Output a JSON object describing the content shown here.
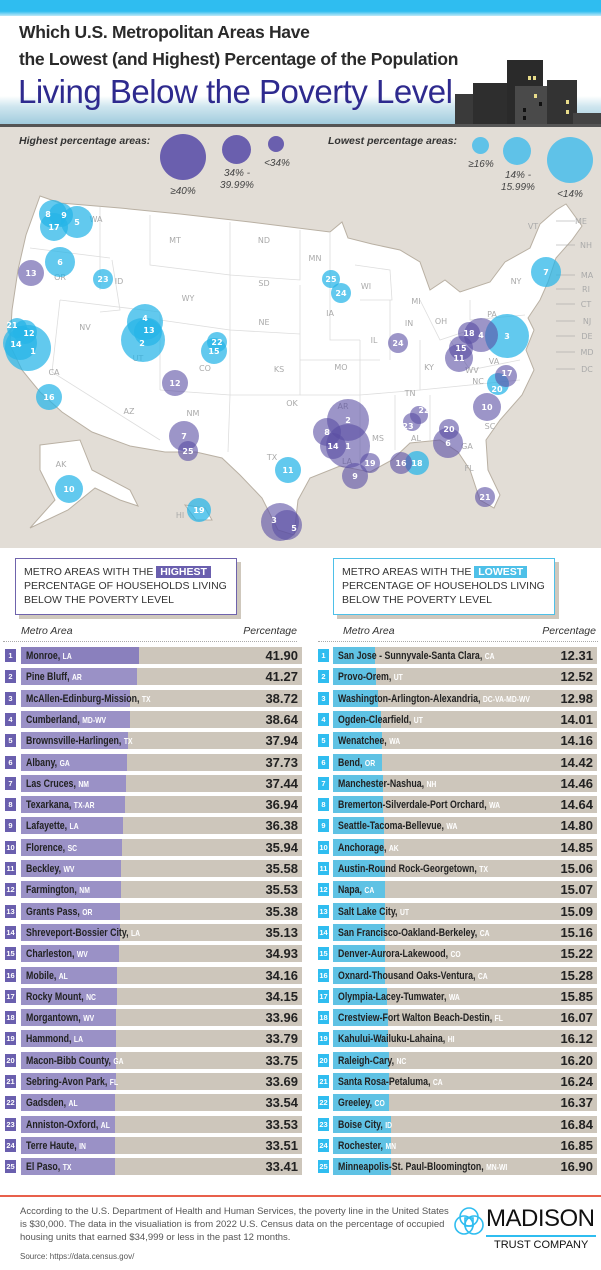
{
  "header": {
    "title_line1": "Which U.S. Metropolitan Areas Have",
    "title_line2": "the Lowest (and Highest) Percentage of the Population",
    "title_line3": "Living Below the Poverty Level"
  },
  "legend": {
    "highest_label": "Highest percentage areas:",
    "highest_sizes": [
      "≥40%",
      "34% -\n39.99%",
      "<34%"
    ],
    "lowest_label": "Lowest percentage areas:",
    "lowest_sizes": [
      "≥16%",
      "14% -\n15.99%",
      "<14%"
    ],
    "highest_color": "#6a5fae",
    "lowest_color": "#4ec0e8"
  },
  "map": {
    "state_labels": [
      "ME",
      "NH",
      "MA",
      "RI",
      "CT",
      "NJ",
      "DE",
      "MD",
      "DC",
      "VT",
      "NY",
      "PA",
      "MT",
      "ND",
      "MN",
      "WI",
      "MI",
      "SD",
      "WY",
      "ID",
      "OR",
      "WA",
      "NV",
      "CA",
      "UT",
      "CO",
      "NE",
      "IA",
      "IL",
      "IN",
      "OH",
      "KS",
      "MO",
      "KY",
      "WV",
      "VA",
      "NC",
      "TN",
      "SC",
      "OK",
      "AR",
      "AZ",
      "NM",
      "TX",
      "LA",
      "MS",
      "AL",
      "GA",
      "FL",
      "AK",
      "HI"
    ],
    "markers": [
      {
        "rank": "8",
        "group": "lowest"
      },
      {
        "rank": "9",
        "group": "lowest"
      },
      {
        "rank": "17",
        "group": "lowest"
      },
      {
        "rank": "5",
        "group": "lowest"
      },
      {
        "rank": "6",
        "group": "lowest"
      },
      {
        "rank": "23",
        "group": "lowest"
      },
      {
        "rank": "21",
        "group": "lowest"
      },
      {
        "rank": "12",
        "group": "lowest"
      },
      {
        "rank": "14",
        "group": "lowest"
      },
      {
        "rank": "1",
        "group": "lowest"
      },
      {
        "rank": "4",
        "group": "lowest"
      },
      {
        "rank": "13",
        "group": "lowest"
      },
      {
        "rank": "2",
        "group": "lowest"
      },
      {
        "rank": "22",
        "group": "lowest"
      },
      {
        "rank": "15",
        "group": "lowest"
      },
      {
        "rank": "16",
        "group": "lowest"
      },
      {
        "rank": "10",
        "group": "lowest"
      },
      {
        "rank": "19",
        "group": "lowest"
      },
      {
        "rank": "11",
        "group": "lowest"
      },
      {
        "rank": "25",
        "group": "lowest"
      },
      {
        "rank": "24",
        "group": "lowest"
      },
      {
        "rank": "7",
        "group": "lowest"
      },
      {
        "rank": "3",
        "group": "lowest"
      },
      {
        "rank": "20",
        "group": "lowest"
      },
      {
        "rank": "18",
        "group": "lowest"
      },
      {
        "rank": "13",
        "group": "highest"
      },
      {
        "rank": "12",
        "group": "highest"
      },
      {
        "rank": "7",
        "group": "highest"
      },
      {
        "rank": "25",
        "group": "highest"
      },
      {
        "rank": "3",
        "group": "highest"
      },
      {
        "rank": "5",
        "group": "highest"
      },
      {
        "rank": "2",
        "group": "highest"
      },
      {
        "rank": "8",
        "group": "highest"
      },
      {
        "rank": "14",
        "group": "highest"
      },
      {
        "rank": "1",
        "group": "highest"
      },
      {
        "rank": "9",
        "group": "highest"
      },
      {
        "rank": "19",
        "group": "highest"
      },
      {
        "rank": "16",
        "group": "highest"
      },
      {
        "rank": "22",
        "group": "highest"
      },
      {
        "rank": "23",
        "group": "highest"
      },
      {
        "rank": "20",
        "group": "highest"
      },
      {
        "rank": "6",
        "group": "highest"
      },
      {
        "rank": "10",
        "group": "highest"
      },
      {
        "rank": "21",
        "group": "highest"
      },
      {
        "rank": "17",
        "group": "highest"
      },
      {
        "rank": "24",
        "group": "highest"
      },
      {
        "rank": "18",
        "group": "highest"
      },
      {
        "rank": "4",
        "group": "highest"
      },
      {
        "rank": "15",
        "group": "highest"
      },
      {
        "rank": "11",
        "group": "highest"
      }
    ]
  },
  "chart_data": [
    {
      "type": "bar",
      "orientation": "horizontal",
      "title_pre": "METRO AREAS WITH THE",
      "title_highlight": "HIGHEST",
      "title_post": "PERCENTAGE OF HOUSEHOLDS LIVING BELOW THE POVERTY LEVEL",
      "col_name": "Metro Area",
      "col_value": "Percentage",
      "color": "#9a91c6",
      "rows": [
        {
          "rank": "1",
          "name": "Monroe,",
          "state": "LA",
          "value": "41.90"
        },
        {
          "rank": "2",
          "name": "Pine Bluff,",
          "state": "AR",
          "value": "41.27"
        },
        {
          "rank": "3",
          "name": "McAllen-Edinburg-Mission,",
          "state": "TX",
          "value": "38.72"
        },
        {
          "rank": "4",
          "name": "Cumberland,",
          "state": "MD-WV",
          "value": "38.64"
        },
        {
          "rank": "5",
          "name": "Brownsville-Harlingen,",
          "state": "TX",
          "value": "37.94"
        },
        {
          "rank": "6",
          "name": "Albany,",
          "state": "GA",
          "value": "37.73"
        },
        {
          "rank": "7",
          "name": "Las Cruces,",
          "state": "NM",
          "value": "37.44"
        },
        {
          "rank": "8",
          "name": "Texarkana,",
          "state": "TX-AR",
          "value": "36.94"
        },
        {
          "rank": "9",
          "name": "Lafayette,",
          "state": "LA",
          "value": "36.38"
        },
        {
          "rank": "10",
          "name": "Florence,",
          "state": "SC",
          "value": "35.94"
        },
        {
          "rank": "11",
          "name": "Beckley,",
          "state": "WV",
          "value": "35.58"
        },
        {
          "rank": "12",
          "name": "Farmington,",
          "state": "NM",
          "value": "35.53"
        },
        {
          "rank": "13",
          "name": "Grants Pass,",
          "state": "OR",
          "value": "35.38"
        },
        {
          "rank": "14",
          "name": "Shreveport-Bossier City,",
          "state": "LA",
          "value": "35.13"
        },
        {
          "rank": "15",
          "name": "Charleston,",
          "state": "WV",
          "value": "34.93"
        },
        {
          "rank": "16",
          "name": "Mobile,",
          "state": "AL",
          "value": "34.16"
        },
        {
          "rank": "17",
          "name": "Rocky Mount,",
          "state": "NC",
          "value": "34.15"
        },
        {
          "rank": "18",
          "name": "Morgantown,",
          "state": "WV",
          "value": "33.96"
        },
        {
          "rank": "19",
          "name": "Hammond,",
          "state": "LA",
          "value": "33.79"
        },
        {
          "rank": "20",
          "name": "Macon-Bibb County,",
          "state": "GA",
          "value": "33.75"
        },
        {
          "rank": "21",
          "name": "Sebring-Avon Park,",
          "state": "FL",
          "value": "33.69"
        },
        {
          "rank": "22",
          "name": "Gadsden,",
          "state": "AL",
          "value": "33.54"
        },
        {
          "rank": "23",
          "name": "Anniston-Oxford,",
          "state": "AL",
          "value": "33.53"
        },
        {
          "rank": "24",
          "name": "Terre Haute,",
          "state": "IN",
          "value": "33.51"
        },
        {
          "rank": "25",
          "name": "El Paso,",
          "state": "TX",
          "value": "33.41"
        }
      ]
    },
    {
      "type": "bar",
      "orientation": "horizontal",
      "title_pre": "METRO AREAS WITH THE",
      "title_highlight": "LOWEST",
      "title_post": "PERCENTAGE OF HOUSEHOLDS LIVING BELOW THE POVERTY LEVEL",
      "col_name": "Metro Area",
      "col_value": "Percentage",
      "color": "#5fc2e4",
      "rows": [
        {
          "rank": "1",
          "name": "San Jose - Sunnyvale-Santa Clara,",
          "state": "CA",
          "value": "12.31"
        },
        {
          "rank": "2",
          "name": "Provo-Orem,",
          "state": "UT",
          "value": "12.52"
        },
        {
          "rank": "3",
          "name": "Washington-Arlington-Alexandria,",
          "state": "DC-VA-MD-WV",
          "value": "12.98"
        },
        {
          "rank": "4",
          "name": "Ogden-Clearfield,",
          "state": "UT",
          "value": "14.01"
        },
        {
          "rank": "5",
          "name": "Wenatchee,",
          "state": "WA",
          "value": "14.16"
        },
        {
          "rank": "6",
          "name": "Bend,",
          "state": "OR",
          "value": "14.42"
        },
        {
          "rank": "7",
          "name": "Manchester-Nashua,",
          "state": "NH",
          "value": "14.46"
        },
        {
          "rank": "8",
          "name": "Bremerton-Silverdale-Port Orchard,",
          "state": "WA",
          "value": "14.64"
        },
        {
          "rank": "9",
          "name": "Seattle-Tacoma-Bellevue,",
          "state": "WA",
          "value": "14.80"
        },
        {
          "rank": "10",
          "name": "Anchorage,",
          "state": "AK",
          "value": "14.85"
        },
        {
          "rank": "11",
          "name": "Austin-Round Rock-Georgetown,",
          "state": "TX",
          "value": "15.06"
        },
        {
          "rank": "12",
          "name": "Napa,",
          "state": "CA",
          "value": "15.07"
        },
        {
          "rank": "13",
          "name": "Salt Lake City,",
          "state": "UT",
          "value": "15.09"
        },
        {
          "rank": "14",
          "name": "San Francisco-Oakland-Berkeley,",
          "state": "CA",
          "value": "15.16"
        },
        {
          "rank": "15",
          "name": "Denver-Aurora-Lakewood,",
          "state": "CO",
          "value": "15.22"
        },
        {
          "rank": "16",
          "name": "Oxnard-Thousand Oaks-Ventura,",
          "state": "CA",
          "value": "15.28"
        },
        {
          "rank": "17",
          "name": "Olympia-Lacey-Tumwater,",
          "state": "WA",
          "value": "15.85"
        },
        {
          "rank": "18",
          "name": "Crestview-Fort Walton Beach-Destin,",
          "state": "FL",
          "value": "16.07"
        },
        {
          "rank": "19",
          "name": "Kahului-Wailuku-Lahaina,",
          "state": "HI",
          "value": "16.12"
        },
        {
          "rank": "20",
          "name": "Raleigh-Cary,",
          "state": "NC",
          "value": "16.20"
        },
        {
          "rank": "21",
          "name": "Santa Rosa-Petaluma,",
          "state": "CA",
          "value": "16.24"
        },
        {
          "rank": "22",
          "name": "Greeley,",
          "state": "CO",
          "value": "16.37"
        },
        {
          "rank": "23",
          "name": "Boise City,",
          "state": "ID",
          "value": "16.84"
        },
        {
          "rank": "24",
          "name": "Rochester,",
          "state": "MN",
          "value": "16.85"
        },
        {
          "rank": "25",
          "name": "Minneapolis-St. Paul-Bloomington,",
          "state": "MN-WI",
          "value": "16.90"
        }
      ]
    }
  ],
  "footer": {
    "note": "According to the U.S. Department of Health and Human Services, the poverty line in the United States is $30,000. The data in the visualiation is from 2022 U.S. Census data on the percentage of occupied housing units that earned $34,999 or less in the past 12 months.",
    "source": "Source: https://data.census.gov/",
    "logo_name": "MADISON",
    "logo_sub": "TRUST COMPANY"
  }
}
